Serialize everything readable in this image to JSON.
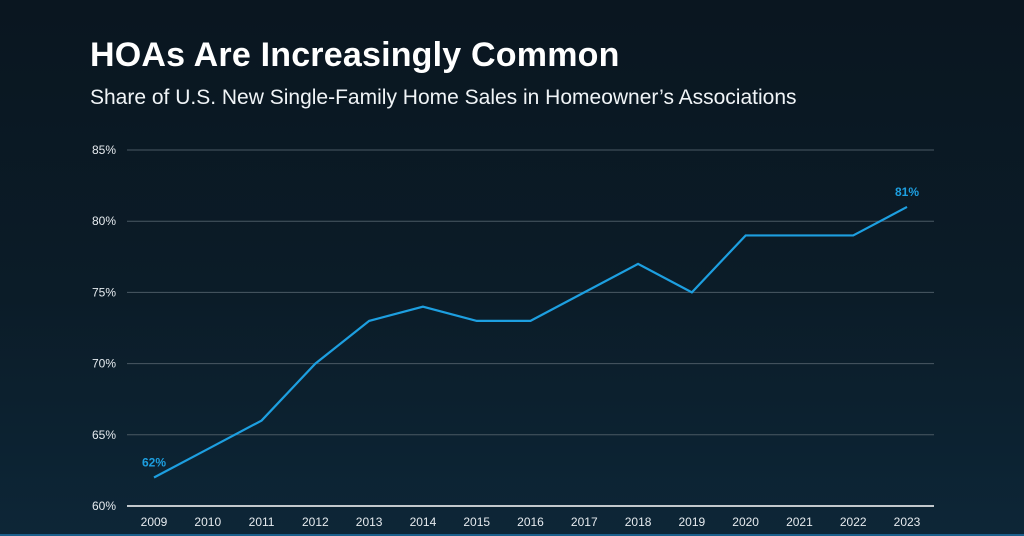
{
  "header": {
    "title": "HOAs Are Increasingly Common",
    "subtitle": "Share of U.S. New Single-Family Home Sales in Homeowner’s Associations"
  },
  "colors": {
    "line": "#1d9fe0",
    "label": "#1d9fe0",
    "grid": "#4a5963",
    "axis": "#ffffff",
    "tick_text": "#e6ebef"
  },
  "chart_data": {
    "type": "line",
    "title": "HOAs Are Increasingly Common",
    "subtitle": "Share of U.S. New Single-Family Home Sales in Homeowner’s Associations",
    "xlabel": "",
    "ylabel": "",
    "x": [
      "2009",
      "2010",
      "2011",
      "2012",
      "2013",
      "2014",
      "2015",
      "2016",
      "2017",
      "2018",
      "2019",
      "2020",
      "2021",
      "2022",
      "2023"
    ],
    "series": [
      {
        "values": [
          62,
          64,
          66,
          70,
          73,
          74,
          73,
          73,
          75,
          77,
          75,
          79,
          79,
          79,
          81
        ]
      }
    ],
    "ylim": [
      60,
      85
    ],
    "yticks": [
      60,
      65,
      70,
      75,
      80,
      85
    ],
    "ytick_labels": [
      "60%",
      "65%",
      "70%",
      "75%",
      "80%",
      "85%"
    ],
    "data_labels": [
      {
        "x": "2009",
        "text": "62%"
      },
      {
        "x": "2023",
        "text": "81%"
      }
    ],
    "grid": true,
    "legend": "none"
  }
}
